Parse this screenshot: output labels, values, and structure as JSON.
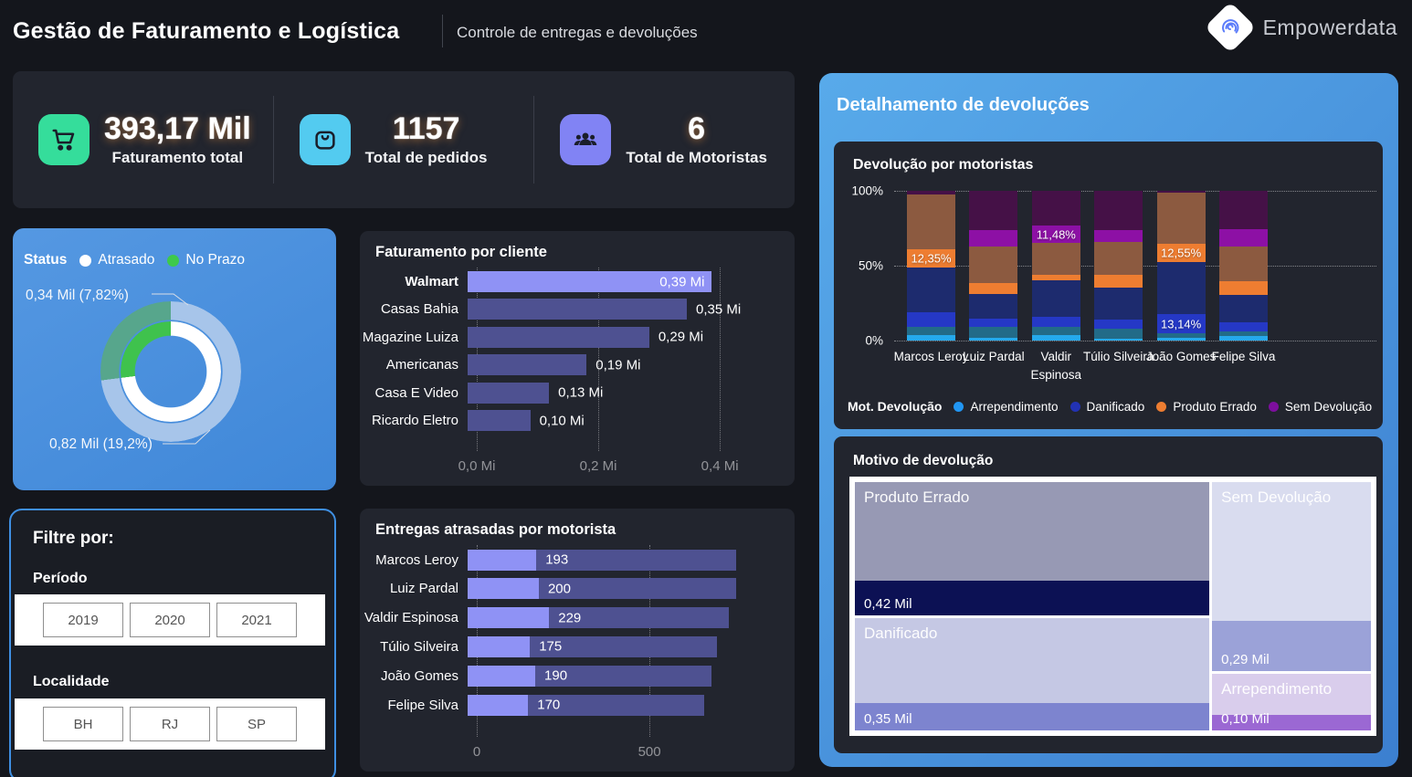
{
  "header": {
    "title": "Gestão de Faturamento e Logística",
    "subtitle": "Controle de entregas e devoluções",
    "brand": "Empowerdata"
  },
  "kpis": [
    {
      "icon": "cart-icon",
      "value": "393,17 Mil",
      "label": "Faturamento total",
      "icon_bg": "#35DD9B"
    },
    {
      "icon": "shopping-bag-icon",
      "value": "1157",
      "label": "Total de pedidos",
      "icon_bg": "#53CBF0"
    },
    {
      "icon": "drivers-icon",
      "value": "6",
      "label": "Total de Motoristas",
      "icon_bg": "#8183F4"
    }
  ],
  "filters": {
    "title": "Filtre por:",
    "groups": [
      {
        "label": "Período",
        "options": [
          "2019",
          "2020",
          "2021"
        ]
      },
      {
        "label": "Localidade",
        "options": [
          "BH",
          "RJ",
          "SP"
        ]
      }
    ]
  },
  "detail_panel": {
    "title": "Detalhamento de devoluções"
  },
  "chart_data": [
    {
      "id": "status_donut",
      "type": "pie",
      "title": "Status",
      "legend": [
        {
          "label": "Atrasado",
          "color": "#FFFFFF"
        },
        {
          "label": "No Prazo",
          "color": "#3EC94B"
        }
      ],
      "slices": [
        {
          "label": "No Prazo",
          "callout": "0,34 Mil (7,82%)",
          "sweep_pct": 27
        },
        {
          "label": "Atrasado",
          "callout": "0,82 Mil (19,2%)",
          "sweep_pct": 73
        }
      ],
      "ring_colors": {
        "outer_no_prazo": "#57A68C",
        "outer_atrasado": "#A7C5EA",
        "inner_no_prazo": "#3FC24D",
        "inner_atrasado": "#FFFFFF"
      }
    },
    {
      "id": "faturamento_cliente",
      "type": "bar",
      "title": "Faturamento por cliente",
      "categories": [
        "Walmart",
        "Casas Bahia",
        "Magazine Luiza",
        "Americanas",
        "Casa E Video",
        "Ricardo Eletro"
      ],
      "values_mi": [
        0.39,
        0.35,
        0.29,
        0.19,
        0.13,
        0.1
      ],
      "value_labels": [
        "0,39 Mi",
        "0,35 Mi",
        "0,29 Mi",
        "0,19 Mi",
        "0,13 Mi",
        "0,10 Mi"
      ],
      "highlight_index": 0,
      "xmax_mi": 0.49,
      "axis_ticks": [
        {
          "label": "0,0 Mi",
          "mi": 0
        },
        {
          "label": "0,2 Mi",
          "mi": 0.2
        },
        {
          "label": "0,4 Mi",
          "mi": 0.4
        }
      ],
      "colors": {
        "highlight": "#8F92F5",
        "normal": "#4E5191"
      }
    },
    {
      "id": "entregas_motorista",
      "type": "bar",
      "title": "Entregas atrasadas por motorista",
      "categories": [
        "Marcos Leroy",
        "Luiz Pardal",
        "Valdir Espinosa",
        "Túlio Silveira",
        "João Gomes",
        "Felipe Silva"
      ],
      "values": [
        193,
        200,
        229,
        175,
        190,
        170
      ],
      "totals_est": [
        753,
        753,
        733,
        700,
        685,
        665
      ],
      "xmax": 862,
      "axis_ticks": [
        {
          "label": "0",
          "v": 0
        },
        {
          "label": "500",
          "v": 500
        }
      ],
      "colors": {
        "highlight": "#8F92F5",
        "normal": "#4E5191"
      }
    },
    {
      "id": "devolucao_motoristas",
      "type": "stacked-bar-100",
      "title": "Devolução por motoristas",
      "y_ticks": [
        {
          "label": "100%",
          "pct": 100
        },
        {
          "label": "50%",
          "pct": 50
        },
        {
          "label": "0%",
          "pct": 0
        }
      ],
      "legend_title": "Mot. Devolução",
      "legend": [
        {
          "label": "Arrependimento",
          "color": "#2196F3"
        },
        {
          "label": "Danificado",
          "color": "#2232B4"
        },
        {
          "label": "Produto Errado",
          "color": "#ED7D31"
        },
        {
          "label": "Sem Devolução",
          "color": "#7D0F9E"
        }
      ],
      "segment_order": [
        "arrB",
        "arrD",
        "danB",
        "danD",
        "peB",
        "peD",
        "sdB",
        "sdD"
      ],
      "segment_colors": {
        "arrB": "#25A9EC",
        "arrD": "#226B88",
        "danB": "#2538C6",
        "danD": "#1D2B6E",
        "peB": "#EE7D31",
        "peD": "#8C5A40",
        "sdB": "#8D10A5",
        "sdD": "#451147"
      },
      "bars": [
        {
          "name": "Marcos Leroy",
          "segs": {
            "arrB": 3.4,
            "arrD": 5.7,
            "danB": 10.0,
            "danD": 29.5,
            "peB": 12.35,
            "peD": 36.5,
            "sdB": 0,
            "sdD": 2.55
          },
          "labels": {
            "peB": "12,35%"
          }
        },
        {
          "name": "Luiz Pardal",
          "segs": {
            "arrB": 2.0,
            "arrD": 7.0,
            "danB": 5.7,
            "danD": 16.6,
            "peB": 7.0,
            "peD": 24.3,
            "sdB": 11.2,
            "sdD": 26.2
          },
          "labels": {}
        },
        {
          "name": "Valdir Espinosa",
          "segs": {
            "arrB": 3.4,
            "arrD": 6.0,
            "danB": 6.7,
            "danD": 24.0,
            "peB": 3.8,
            "peD": 21.3,
            "sdB": 11.48,
            "sdD": 23.32
          },
          "labels": {
            "sdB": "11,48%"
          }
        },
        {
          "name": "Túlio Silveira",
          "segs": {
            "arrB": 1.4,
            "arrD": 6.7,
            "danB": 6.0,
            "danD": 21.0,
            "peB": 9.0,
            "peD": 22.0,
            "sdB": 7.7,
            "sdD": 26.2
          },
          "labels": {}
        },
        {
          "name": "João Gomes",
          "segs": {
            "arrB": 2.0,
            "arrD": 2.6,
            "danB": 13.14,
            "danD": 34.5,
            "peB": 12.55,
            "peD": 34.0,
            "sdB": 0,
            "sdD": 1.21
          },
          "labels": {
            "danB": "13,14%",
            "peB": "12,55%"
          }
        },
        {
          "name": "Felipe Silva",
          "segs": {
            "arrB": 3.0,
            "arrD": 3.0,
            "danB": 6.0,
            "danD": 18.3,
            "peB": 9.5,
            "peD": 23.0,
            "sdB": 11.6,
            "sdD": 25.6
          },
          "labels": {}
        }
      ]
    },
    {
      "id": "motivo_devolucao",
      "type": "treemap",
      "title": "Motivo de devolução",
      "tiles": [
        {
          "label": "Produto Errado",
          "value": "0,42 Mil",
          "main_color": "#9799B4",
          "strip_color": "#0C1154",
          "strip_pct": 26.4
        },
        {
          "label": "Danificado",
          "value": "0,35 Mil",
          "main_color": "#C5C8E4",
          "strip_color": "#7D84CF",
          "strip_pct": 24.2
        },
        {
          "label": "Sem Devolução",
          "value": "0,29 Mil",
          "main_color": "#D9DCEF",
          "strip_color": "#9BA2D8",
          "strip_pct": 26.8
        },
        {
          "label": "Arrependimento",
          "value": "0,10 Mil",
          "main_color": "#D9CDEC",
          "strip_color": "#9B68D3",
          "strip_pct": 27.9
        }
      ],
      "layout": {
        "left_col_pct": 68.7,
        "left_split_pct": 54.4,
        "right_split_pct": 76.8
      }
    }
  ]
}
